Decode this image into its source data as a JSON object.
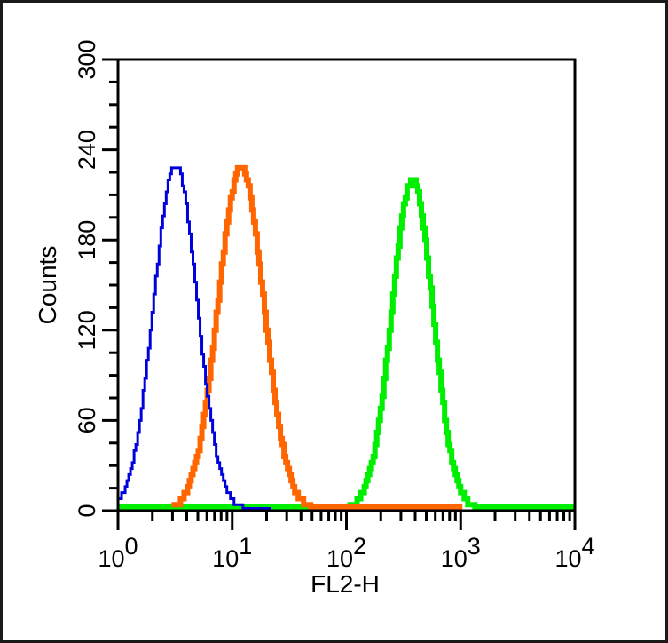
{
  "chart_data": {
    "type": "line",
    "subtype": "flow-cytometry-histogram",
    "title": "",
    "xlabel": "FL2-H",
    "ylabel": "Counts",
    "xscale": "log",
    "xlim": [
      1,
      10000
    ],
    "ylim": [
      0,
      300
    ],
    "x_tick_labels": [
      {
        "base": "10",
        "exp": "0"
      },
      {
        "base": "10",
        "exp": "1"
      },
      {
        "base": "10",
        "exp": "2"
      },
      {
        "base": "10",
        "exp": "3"
      },
      {
        "base": "10",
        "exp": "4"
      }
    ],
    "y_ticks": [
      0,
      60,
      120,
      180,
      240,
      300
    ],
    "y_tick_labels": [
      "0",
      "60",
      "120",
      "180",
      "240",
      "300"
    ],
    "grid": false,
    "legend": null,
    "series": [
      {
        "name": "blue",
        "color": "#0000dd",
        "line_width": 3,
        "peak_x": 3.2,
        "peak_count": 230,
        "log_sigma": 0.19,
        "x_range": [
          1,
          22
        ],
        "dashed_tail_from": 9
      },
      {
        "name": "orange",
        "color": "#ff6600",
        "line_width": 6,
        "peak_x": 12,
        "peak_count": 228,
        "log_sigma": 0.2,
        "x_range": [
          3,
          1000
        ]
      },
      {
        "name": "green",
        "color": "#00ee00",
        "line_width": 6,
        "peak_x": 380,
        "peak_count": 220,
        "log_sigma": 0.18,
        "x_range": [
          1,
          10000
        ]
      }
    ]
  }
}
